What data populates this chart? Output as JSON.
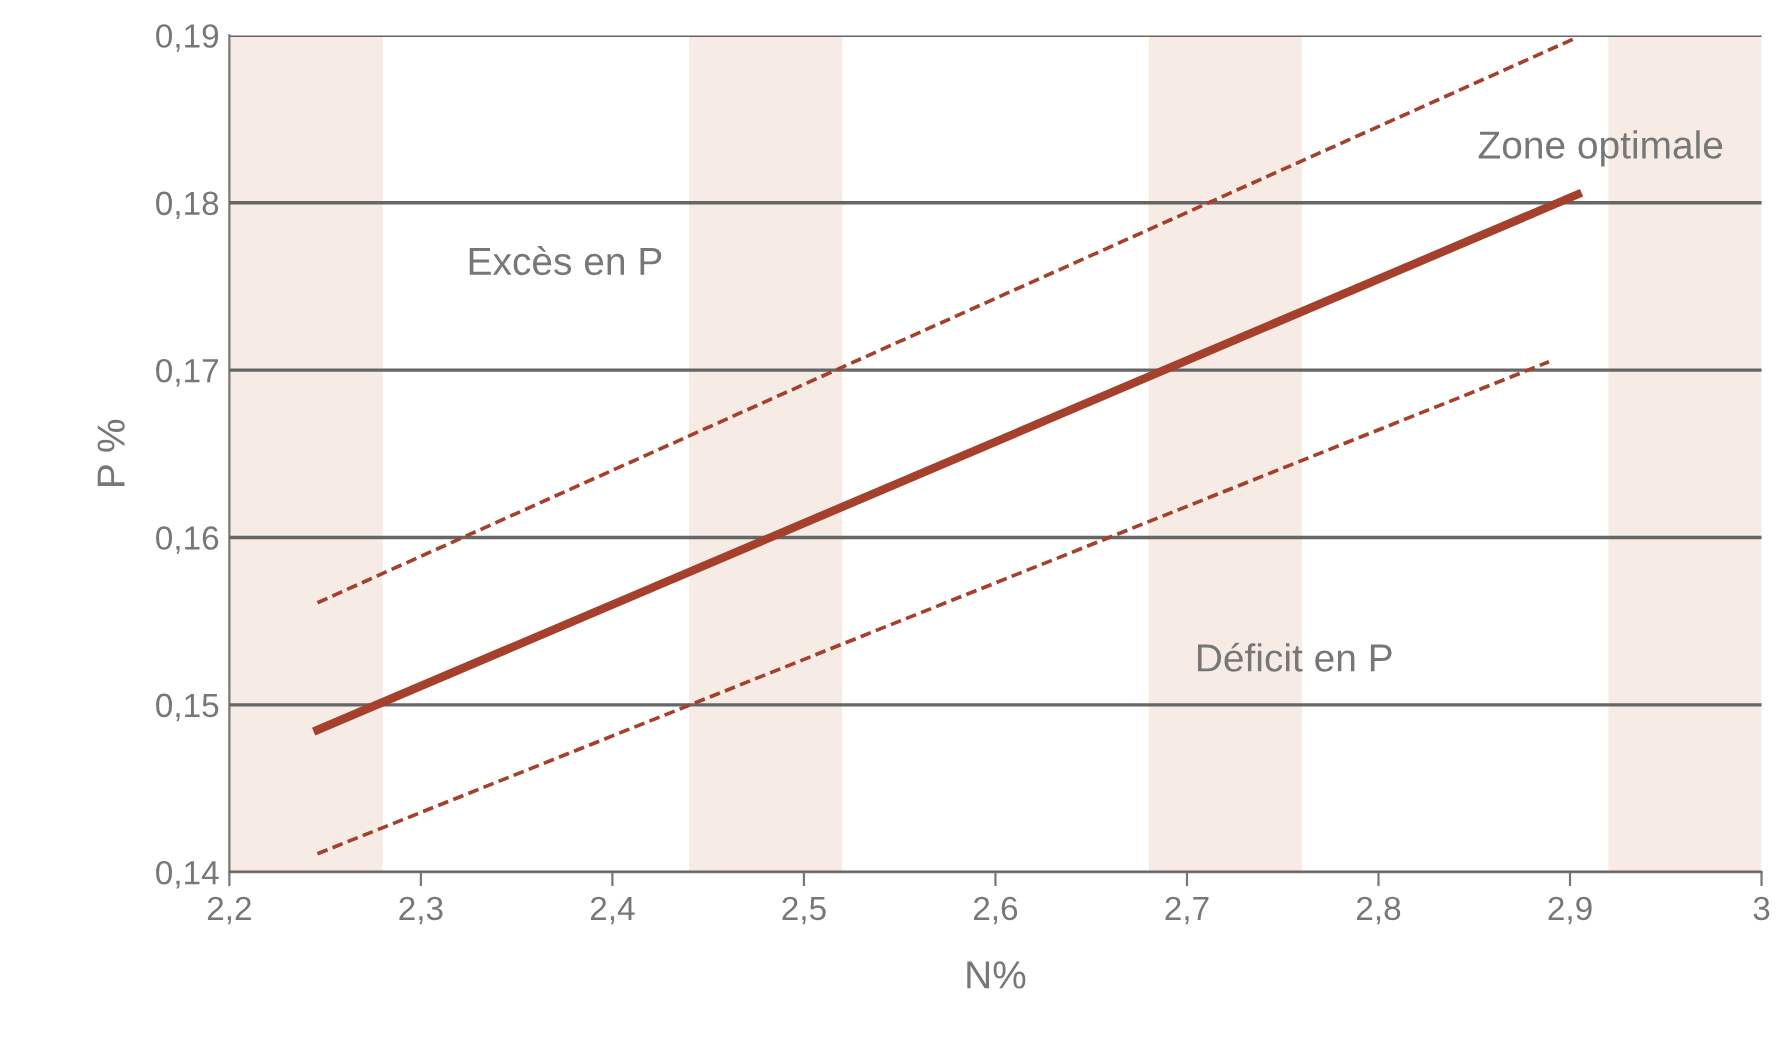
{
  "chart_data": {
    "type": "line",
    "xlabel": "N%",
    "ylabel": "P %",
    "xlim": [
      2.2,
      3.0
    ],
    "ylim": [
      0.14,
      0.19
    ],
    "xticks": [
      {
        "value": 2.2,
        "label": "2,2"
      },
      {
        "value": 2.3,
        "label": "2,3"
      },
      {
        "value": 2.4,
        "label": "2,4"
      },
      {
        "value": 2.5,
        "label": "2,5"
      },
      {
        "value": 2.6,
        "label": "2,6"
      },
      {
        "value": 2.7,
        "label": "2,7"
      },
      {
        "value": 2.8,
        "label": "2,8"
      },
      {
        "value": 2.9,
        "label": "2,9"
      },
      {
        "value": 3.0,
        "label": "3"
      }
    ],
    "yticks": [
      {
        "value": 0.14,
        "label": "0,14"
      },
      {
        "value": 0.15,
        "label": "0,15"
      },
      {
        "value": 0.16,
        "label": "0,16"
      },
      {
        "value": 0.17,
        "label": "0,17"
      },
      {
        "value": 0.18,
        "label": "0,18"
      },
      {
        "value": 0.19,
        "label": "0,19"
      }
    ],
    "grid": "y",
    "legend": false,
    "marker": "none",
    "series": [
      {
        "color": "#a5402d",
        "x": [
          2.246,
          2.904
        ],
        "values": [
          0.1485,
          0.1805
        ],
        "line_style": "solid"
      },
      {
        "color": "#a5402d",
        "x": [
          2.246,
          2.904
        ],
        "values": [
          0.1561,
          0.1899
        ],
        "line_style": "dashed"
      },
      {
        "color": "#a5402d",
        "x": [
          2.246,
          2.889
        ],
        "values": [
          0.1411,
          0.1705
        ],
        "line_style": "dashed"
      }
    ],
    "bands": [
      {
        "axis": "x",
        "from": 2.2,
        "to": 2.28,
        "color": "#f6ece5"
      },
      {
        "axis": "x",
        "from": 2.44,
        "to": 2.52,
        "color": "#f6ece5"
      },
      {
        "axis": "x",
        "from": 2.68,
        "to": 2.76,
        "color": "#f6ece5"
      },
      {
        "axis": "x",
        "from": 2.92,
        "to": 3.0,
        "color": "#f6ece5"
      }
    ],
    "annotations": [
      "Zone optimale",
      "Excès en P",
      "Déficit en P"
    ]
  }
}
